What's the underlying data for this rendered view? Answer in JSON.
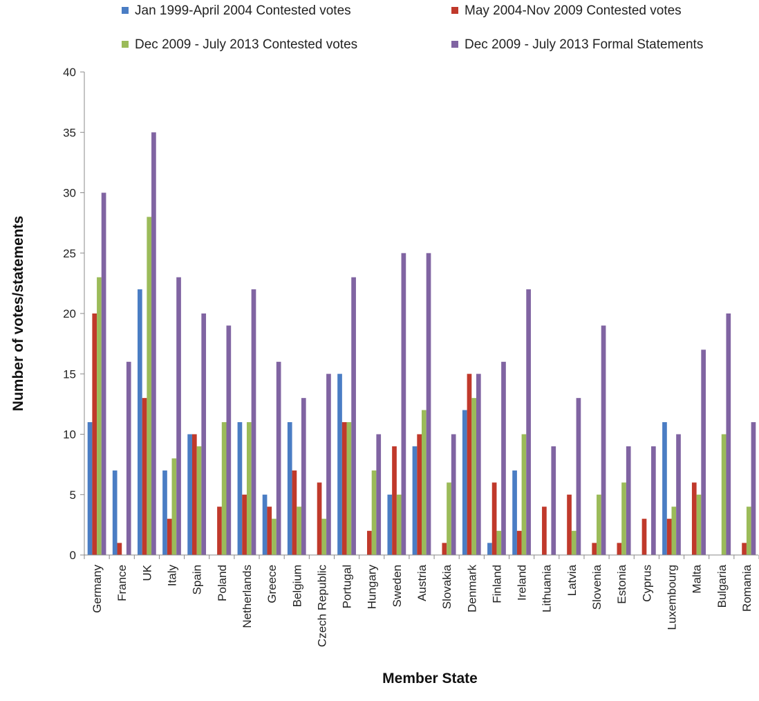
{
  "chart_data": {
    "type": "bar",
    "title": "",
    "xlabel": "Member State",
    "ylabel": "Number of votes/statements",
    "ylim": [
      0,
      40
    ],
    "yticks": [
      0,
      5,
      10,
      15,
      20,
      25,
      30,
      35,
      40
    ],
    "grid": false,
    "legend_position": "top",
    "categories": [
      "Germany",
      "France",
      "UK",
      "Italy",
      "Spain",
      "Poland",
      "Netherlands",
      "Greece",
      "Belgium",
      "Czech Republic",
      "Portugal",
      "Hungary",
      "Sweden",
      "Austria",
      "Slovakia",
      "Denmark",
      "Finland",
      "Ireland",
      "Lithuania",
      "Latvia",
      "Slovenia",
      "Estonia",
      "Cyprus",
      "Luxembourg",
      "Malta",
      "Bulgaria",
      "Romania"
    ],
    "series": [
      {
        "name": "Jan 1999-April 2004 Contested votes",
        "color": "#4a7dc4",
        "values": [
          11,
          7,
          22,
          7,
          10,
          0,
          11,
          5,
          11,
          0,
          15,
          0,
          5,
          9,
          0,
          12,
          1,
          7,
          0,
          0,
          0,
          0,
          0,
          11,
          0,
          0,
          0
        ]
      },
      {
        "name": "May 2004-Nov 2009 Contested votes",
        "color": "#c0392b",
        "values": [
          20,
          1,
          13,
          3,
          10,
          4,
          5,
          4,
          7,
          6,
          11,
          2,
          9,
          10,
          1,
          15,
          6,
          2,
          4,
          5,
          1,
          1,
          3,
          3,
          6,
          0,
          1
        ]
      },
      {
        "name": "Dec 2009 - July 2013 Contested votes",
        "color": "#9bbb59",
        "values": [
          23,
          0,
          28,
          8,
          9,
          11,
          11,
          3,
          4,
          3,
          11,
          7,
          5,
          12,
          6,
          13,
          2,
          10,
          0,
          2,
          5,
          6,
          0,
          4,
          5,
          10,
          4
        ]
      },
      {
        "name": "Dec 2009 - July 2013 Formal Statements",
        "color": "#8064a2",
        "values": [
          30,
          16,
          35,
          23,
          20,
          19,
          22,
          16,
          13,
          15,
          23,
          10,
          25,
          25,
          10,
          15,
          16,
          22,
          9,
          13,
          19,
          9,
          9,
          10,
          17,
          20,
          11
        ]
      }
    ]
  }
}
